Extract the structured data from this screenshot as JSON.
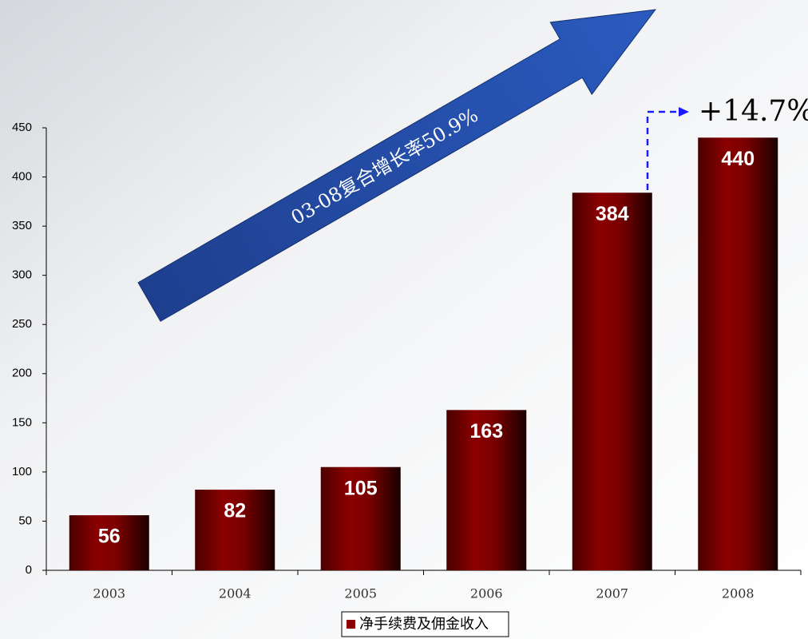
{
  "chart_data": {
    "type": "bar",
    "categories": [
      "2003",
      "2004",
      "2005",
      "2006",
      "2007",
      "2008"
    ],
    "series": [
      {
        "name": "净手续费及佣金收入",
        "color": "#8b0000",
        "values": [
          56,
          82,
          105,
          163,
          384,
          440
        ]
      }
    ],
    "ylim": [
      0,
      450
    ],
    "yticks": [
      0,
      50,
      100,
      150,
      200,
      250,
      300,
      350,
      400,
      450
    ],
    "grid": false,
    "annotations": [
      "03-08复合增长率50.9%",
      "+14.7%"
    ]
  }
}
